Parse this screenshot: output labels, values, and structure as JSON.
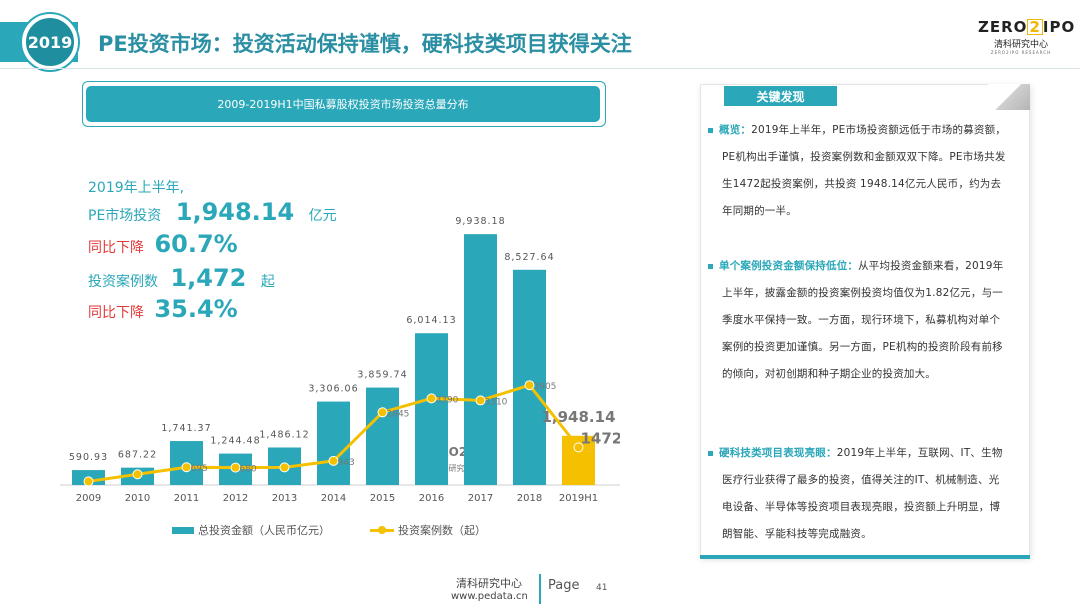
{
  "header": {
    "year_badge": "2019",
    "title": "PE投资市场：投资活动保持谨慎，硬科技类项目获得关注"
  },
  "logo": {
    "left": "ZERO",
    "mid": "2",
    "right": "IPO",
    "cn": "清科研究中心",
    "en": "ZERO2IPO RESEARCH"
  },
  "chart_title": "2009-2019H1中国私募股权投资市场投资总量分布",
  "summary": {
    "line1": "2019年上半年,",
    "line2_prefix": "PE市场投资",
    "line2_value": "1,948.14",
    "line2_unit": "亿元",
    "line3_prefix": "同比下降",
    "line3_value": "60.7%",
    "line4_prefix": "投资案例数",
    "line4_value": "1,472",
    "line4_unit": "起",
    "line5_prefix": "同比下降",
    "line5_value": "35.4%"
  },
  "chart_data": {
    "type": "bar",
    "categories": [
      "2009",
      "2010",
      "2011",
      "2012",
      "2013",
      "2014",
      "2015",
      "2016",
      "2017",
      "2018",
      "2019H1"
    ],
    "series": [
      {
        "name": "总投资金额（人民币亿元）",
        "type": "bar",
        "values": [
          590.93,
          687.22,
          1741.37,
          1244.48,
          1486.12,
          3306.06,
          3859.74,
          6014.13,
          9938.18,
          8527.64,
          1948.14
        ],
        "labels": [
          "590.93",
          "687.22",
          "1,741.37",
          "1,244.48",
          "1,486.12",
          "3,306.06",
          "3,859.74",
          "6,014.13",
          "9,938.18",
          "8,527.64",
          "1,948.14"
        ],
        "color": "#2aa7b8",
        "highlight_color": "#f5c000"
      },
      {
        "name": "投资案例数（起）",
        "type": "line",
        "values": [
          140,
          420,
          695,
          680,
          690,
          943,
          2845,
          3390,
          3310,
          3905,
          1472
        ],
        "labels": [
          "",
          "",
          "695",
          "680",
          "",
          "943",
          "2845",
          "3390",
          "3310",
          "3905",
          "1472"
        ],
        "color": "#f5c000"
      }
    ],
    "ylim": [
      0,
      10500
    ],
    "ylim_line": [
      0,
      4500
    ],
    "grid": false,
    "legend": "bottom"
  },
  "watermark": {
    "text": "ZERO2IPO",
    "cn": "清科研究中心"
  },
  "panel": {
    "tab": "关键发现",
    "items": [
      {
        "head": "概览：",
        "body": "2019年上半年，PE市场投资额远低于市场的募资额，PE机构出手谨慎，投资案例数和金额双双下降。PE市场共发生1472起投资案例，共投资 1948.14亿元人民币，约为去年同期的一半。"
      },
      {
        "head": "单个案例投资金额保持低位：",
        "body": "从平均投资金额来看，2019年上半年，披露金额的投资案例投资均值仅为1.82亿元，与一季度水平保持一致。一方面，现行环境下，私募机构对单个案例的投资更加谨慎。另一方面，PE机构的投资阶段有前移的倾向，对初创期和种子期企业的投资加大。"
      },
      {
        "head": "硬科技类项目表现亮眼：",
        "body": "2019年上半年，互联网、IT、生物医疗行业获得了最多的投资，值得关注的IT、机械制造、光电设备、半导体等投资项目表现亮眼，投资额上升明显，博朗智能、孚能科技等完成融资。"
      }
    ]
  },
  "footer": {
    "org": "清科研究中心",
    "url": "www.pedata.cn",
    "page_label": "Page",
    "page_num": "41"
  },
  "colors": {
    "teal": "#2aa7b8",
    "yellow": "#f5c000",
    "red": "#e33a3a"
  }
}
